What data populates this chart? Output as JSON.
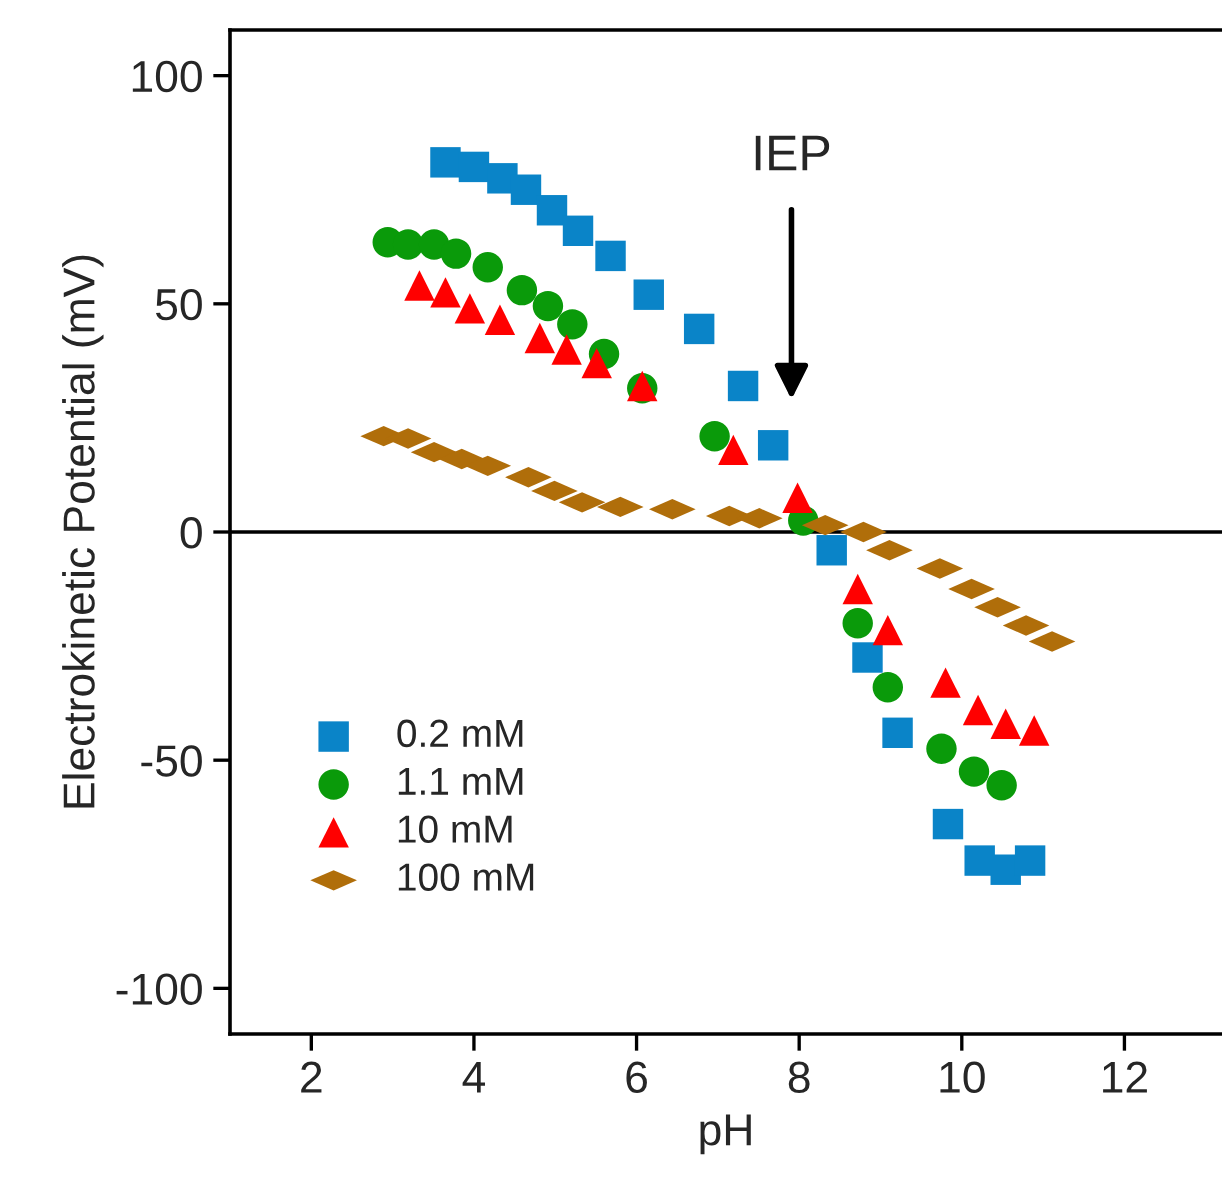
{
  "chart_data": {
    "type": "scatter",
    "xlabel": "pH",
    "ylabel": "Electrokinetic Potential (mV)",
    "xlim": [
      1,
      13.2
    ],
    "ylim": [
      -110,
      110
    ],
    "xticks": [
      2,
      4,
      6,
      8,
      10,
      12
    ],
    "yticks": [
      -100,
      -50,
      0,
      50,
      100
    ],
    "grid": false,
    "legend": "bottom left",
    "ref_lines": [
      {
        "axis": "y",
        "value": 0,
        "color": "#000000",
        "line_style": "solid"
      }
    ],
    "annotations": [
      "IEP"
    ],
    "series": [
      {
        "name": "0.2 mM",
        "color": "#0a84c8",
        "marker": "square",
        "x": [
          3.65,
          4.0,
          4.35,
          4.64,
          4.96,
          5.28,
          5.68,
          6.15,
          6.77,
          7.31,
          7.68,
          8.4,
          8.84,
          9.21,
          9.83,
          10.22,
          10.54,
          10.84
        ],
        "values": [
          81,
          80,
          77.5,
          75,
          70.5,
          66,
          60.5,
          52,
          44.5,
          32,
          19,
          -4,
          -27.5,
          -44,
          -64,
          -72,
          -74,
          -72
        ]
      },
      {
        "name": "1.1 mM",
        "color": "#0a9a0a",
        "marker": "circle",
        "x": [
          2.94,
          3.19,
          3.51,
          3.78,
          4.17,
          4.59,
          4.91,
          5.21,
          5.6,
          6.07,
          6.96,
          8.05,
          8.72,
          9.09,
          9.75,
          10.15,
          10.49
        ],
        "values": [
          63.5,
          63,
          63,
          61,
          58,
          53,
          49.5,
          45.5,
          39,
          31.5,
          21,
          2.5,
          -20,
          -34,
          -47.5,
          -52.5,
          -55.5
        ]
      },
      {
        "name": "10 mM",
        "color": "#ff0000",
        "marker": "triangle",
        "x": [
          3.33,
          3.65,
          3.95,
          4.32,
          4.81,
          5.14,
          5.51,
          6.07,
          7.19,
          7.98,
          8.72,
          9.09,
          9.8,
          10.2,
          10.54,
          10.89
        ],
        "values": [
          54,
          52.5,
          49,
          46.5,
          42.5,
          40,
          37,
          32,
          18,
          7.5,
          -12.5,
          -21.5,
          -33,
          -39,
          -42,
          -43.5
        ]
      },
      {
        "name": "100 mM",
        "color": "#b06e0a",
        "marker": "diamond",
        "x": [
          2.89,
          3.19,
          3.51,
          3.85,
          4.17,
          4.67,
          4.99,
          5.33,
          5.8,
          6.44,
          7.14,
          7.51,
          8.32,
          8.79,
          9.11,
          9.73,
          10.12,
          10.44,
          10.79,
          11.11
        ],
        "values": [
          21,
          20.5,
          17.5,
          16,
          14.5,
          12,
          9,
          6.5,
          5.5,
          5,
          3.5,
          3,
          1.5,
          0,
          -4,
          -8,
          -12.5,
          -16.5,
          -20.5,
          -24
        ]
      }
    ]
  }
}
